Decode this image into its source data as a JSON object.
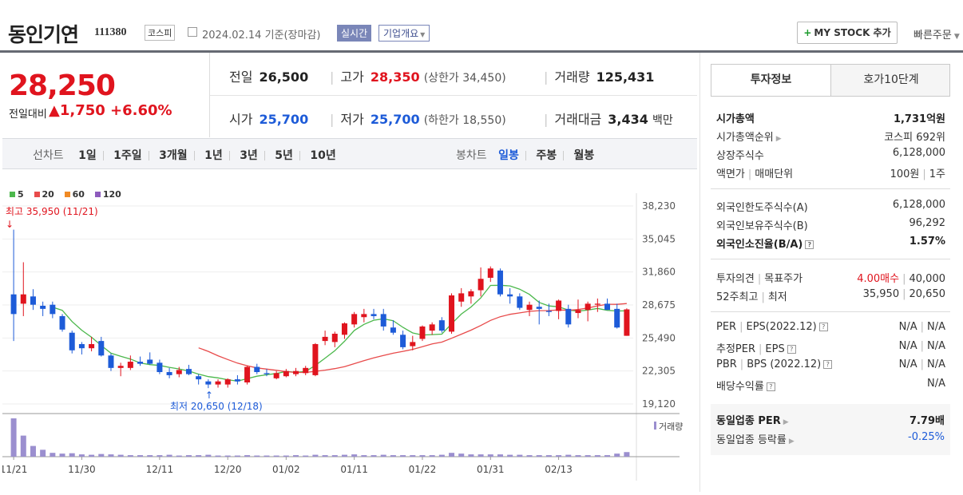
{
  "header": {
    "name": "동인기연",
    "code": "111380",
    "market": "코스피",
    "date": "2024.02.14 기준(장마감)",
    "realtime": "실시간",
    "overview": "기업개요",
    "mystock": "MY STOCK 추가",
    "quick_order": "빠른주문"
  },
  "summary": {
    "price": "28,250",
    "change_label": "전일대비",
    "change": "▲1,750",
    "change_pct": "+6.60%",
    "prev_close": {
      "label": "전일",
      "value": "26,500"
    },
    "high": {
      "label": "고가",
      "value": "28,350",
      "note": "(상한가 34,450)"
    },
    "volume": {
      "label": "거래량",
      "value": "125,431"
    },
    "open": {
      "label": "시가",
      "value": "25,700"
    },
    "low": {
      "label": "저가",
      "value": "25,700",
      "note": "(하한가 18,550)"
    },
    "amount": {
      "label": "거래대금",
      "value": "3,434",
      "unit": "백만"
    }
  },
  "period": {
    "line_label": "선차트",
    "line_items": [
      "1일",
      "1주일",
      "3개월",
      "1년",
      "3년",
      "5년",
      "10년"
    ],
    "candle_label": "봉차트",
    "candle_items": [
      "일봉",
      "주봉",
      "월봉"
    ],
    "candle_selected": "일봉"
  },
  "chart_data": {
    "type": "candlestick",
    "legend": [
      {
        "name": "5",
        "color": "#4cb84c"
      },
      {
        "name": "20",
        "color": "#e84b4b"
      },
      {
        "name": "60",
        "color": "#f08a24"
      },
      {
        "name": "120",
        "color": "#8e5bbd"
      }
    ],
    "y_ticks": [
      "38,230",
      "35,045",
      "31,860",
      "28,675",
      "25,490",
      "22,305",
      "19,120"
    ],
    "ylim": [
      19120,
      38230
    ],
    "x_ticks": [
      "11/21",
      "11/30",
      "12/11",
      "12/20",
      "01/02",
      "01/11",
      "01/22",
      "01/31",
      "02/13"
    ],
    "x_tick_index": [
      0,
      7,
      15,
      22,
      28,
      35,
      42,
      49,
      56
    ],
    "high_note": "최고 35,950 (11/21)",
    "low_note": "최저 20,650 (12/18)",
    "volume_label": "거래량",
    "up_color": "#e0141e",
    "down_color": "#1d5bd8",
    "candles": [
      [
        29700,
        35950,
        25200,
        27800
      ],
      [
        28800,
        32800,
        27600,
        29700
      ],
      [
        29500,
        30200,
        28200,
        28700
      ],
      [
        28600,
        29000,
        27600,
        28300
      ],
      [
        28700,
        29000,
        27400,
        27800
      ],
      [
        27600,
        27800,
        26100,
        26300
      ],
      [
        26000,
        26200,
        24000,
        24300
      ],
      [
        24900,
        25100,
        23900,
        24500
      ],
      [
        24500,
        25600,
        24200,
        24900
      ],
      [
        25200,
        25600,
        23700,
        23800
      ],
      [
        23800,
        24000,
        22300,
        22600
      ],
      [
        22600,
        23100,
        21800,
        22800
      ],
      [
        22600,
        23800,
        22400,
        23200
      ],
      [
        23200,
        23700,
        22800,
        23000
      ],
      [
        23400,
        24100,
        22900,
        23000
      ],
      [
        23100,
        23400,
        22000,
        22200
      ],
      [
        22200,
        22600,
        21600,
        21900
      ],
      [
        22000,
        22700,
        21700,
        22400
      ],
      [
        22500,
        22900,
        21900,
        22000
      ],
      [
        21800,
        22000,
        21000,
        21500
      ],
      [
        21300,
        21500,
        20650,
        21000
      ],
      [
        21000,
        21500,
        20700,
        21300
      ],
      [
        21000,
        21600,
        20700,
        21500
      ],
      [
        21500,
        21900,
        21000,
        21300
      ],
      [
        21200,
        22800,
        21000,
        22700
      ],
      [
        22700,
        23000,
        22000,
        22200
      ],
      [
        22100,
        22500,
        21800,
        22000
      ],
      [
        21600,
        22300,
        21500,
        22100
      ],
      [
        21800,
        22500,
        21700,
        22300
      ],
      [
        22000,
        22600,
        21800,
        22300
      ],
      [
        22100,
        22800,
        21900,
        22600
      ],
      [
        21900,
        25000,
        21800,
        24900
      ],
      [
        25200,
        26200,
        24800,
        25600
      ],
      [
        25100,
        26100,
        24600,
        25900
      ],
      [
        25800,
        27000,
        25400,
        26900
      ],
      [
        26800,
        28000,
        26500,
        27800
      ],
      [
        27500,
        28300,
        27000,
        27800
      ],
      [
        27800,
        28300,
        27300,
        27600
      ],
      [
        27800,
        28300,
        26200,
        26600
      ],
      [
        26500,
        27200,
        25800,
        26000
      ],
      [
        25800,
        26200,
        24400,
        24600
      ],
      [
        24700,
        25700,
        24300,
        25100
      ],
      [
        25400,
        26700,
        25200,
        26600
      ],
      [
        26200,
        27000,
        25800,
        26800
      ],
      [
        27200,
        27500,
        26000,
        26200
      ],
      [
        26100,
        29800,
        25900,
        29600
      ],
      [
        29000,
        30300,
        28500,
        29800
      ],
      [
        29500,
        30200,
        28800,
        30000
      ],
      [
        30100,
        32300,
        29500,
        31200
      ],
      [
        31300,
        32400,
        30900,
        32200
      ],
      [
        32000,
        32200,
        29500,
        29700
      ],
      [
        29700,
        30300,
        28800,
        29500
      ],
      [
        29500,
        29800,
        28200,
        28400
      ],
      [
        28200,
        29000,
        27600,
        28700
      ],
      [
        28500,
        29100,
        26800,
        28300
      ],
      [
        28100,
        28800,
        27600,
        28000
      ],
      [
        28100,
        29200,
        27300,
        29100
      ],
      [
        28300,
        28700,
        26500,
        26800
      ],
      [
        27900,
        29200,
        27400,
        28200
      ],
      [
        28200,
        29000,
        27100,
        28800
      ],
      [
        28700,
        29300,
        28000,
        28800
      ],
      [
        28800,
        29300,
        28200,
        28200
      ],
      [
        28300,
        28800,
        26400,
        26500
      ],
      [
        25700,
        28350,
        25700,
        28250
      ]
    ],
    "volumes": [
      100,
      55,
      28,
      18,
      10,
      8,
      9,
      6,
      5,
      7,
      6,
      5,
      4,
      4,
      4,
      4,
      5,
      3,
      4,
      4,
      5,
      3,
      3,
      3,
      4,
      3,
      3,
      3,
      3,
      4,
      3,
      5,
      4,
      4,
      5,
      6,
      4,
      4,
      5,
      4,
      4,
      4,
      4,
      4,
      5,
      10,
      8,
      6,
      6,
      6,
      6,
      5,
      5,
      4,
      4,
      4,
      4,
      5,
      4,
      4,
      4,
      4,
      8,
      12
    ]
  },
  "side": {
    "tab_active": "투자정보",
    "tab_other": "호가10단계",
    "rows1": [
      {
        "label": "시가총액",
        "value": "1,731억원",
        "bold": true
      },
      {
        "label": "시가총액순위",
        "value": "코스피 692위",
        "arrow": true
      },
      {
        "label": "상장주식수",
        "value": "6,128,000"
      },
      {
        "label": "액면가",
        "label2": "매매단위",
        "value": "100원",
        "value2": "1주"
      }
    ],
    "rows2": [
      {
        "label": "외국인한도주식수(A)",
        "value": "6,128,000"
      },
      {
        "label": "외국인보유주식수(B)",
        "value": "96,292"
      },
      {
        "label": "외국인소진율(B/A)",
        "value": "1.57%",
        "bold": true,
        "help": true
      }
    ],
    "rows3": [
      {
        "label": "투자의견",
        "label2": "목표주가",
        "value": "4.00매수",
        "value2": "40,000"
      },
      {
        "label": "52주최고",
        "label2": "최저",
        "value": "35,950",
        "value2": "20,650"
      }
    ],
    "rows4": [
      {
        "label": "PER",
        "label2": "EPS(2022.12)",
        "value": "N/A",
        "value2": "N/A"
      },
      {
        "label": "추정PER",
        "label2": "EPS",
        "value": "N/A",
        "value2": "N/A"
      },
      {
        "label": "PBR",
        "label2": "BPS (2022.12)",
        "value": "N/A",
        "value2": "N/A"
      },
      {
        "label": "배당수익률",
        "value": "N/A"
      }
    ],
    "rows5": [
      {
        "label": "동일업종 PER",
        "value": "7.79배",
        "bold": true
      },
      {
        "label": "동일업종 등락률",
        "value": "-0.25%"
      }
    ],
    "help_mark": "?"
  }
}
